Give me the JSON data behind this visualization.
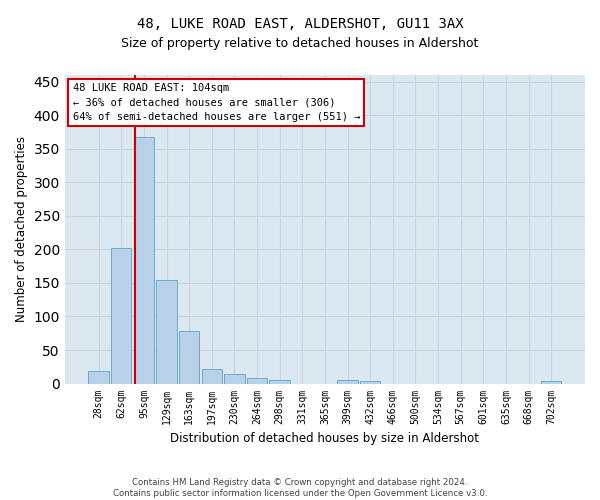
{
  "title": "48, LUKE ROAD EAST, ALDERSHOT, GU11 3AX",
  "subtitle": "Size of property relative to detached houses in Aldershot",
  "xlabel": "Distribution of detached houses by size in Aldershot",
  "ylabel": "Number of detached properties",
  "bin_labels": [
    "28sqm",
    "62sqm",
    "95sqm",
    "129sqm",
    "163sqm",
    "197sqm",
    "230sqm",
    "264sqm",
    "298sqm",
    "331sqm",
    "365sqm",
    "399sqm",
    "432sqm",
    "466sqm",
    "500sqm",
    "534sqm",
    "567sqm",
    "601sqm",
    "635sqm",
    "668sqm",
    "702sqm"
  ],
  "bar_values": [
    18,
    202,
    368,
    155,
    78,
    22,
    14,
    8,
    5,
    0,
    0,
    5,
    4,
    0,
    0,
    0,
    0,
    0,
    0,
    0,
    4
  ],
  "bar_color": "#b8d0e8",
  "bar_edgecolor": "#6aaad4",
  "grid_color": "#c8d4e0",
  "bg_color": "#dce8f0",
  "vline_color": "#cc0000",
  "annotation_lines": [
    "48 LUKE ROAD EAST: 104sqm",
    "← 36% of detached houses are smaller (306)",
    "64% of semi-detached houses are larger (551) →"
  ],
  "annotation_box_edgecolor": "#cc0000",
  "footer_line1": "Contains HM Land Registry data © Crown copyright and database right 2024.",
  "footer_line2": "Contains public sector information licensed under the Open Government Licence v3.0.",
  "ylim": [
    0,
    460
  ],
  "yticks": [
    0,
    50,
    100,
    150,
    200,
    250,
    300,
    350,
    400,
    450
  ]
}
